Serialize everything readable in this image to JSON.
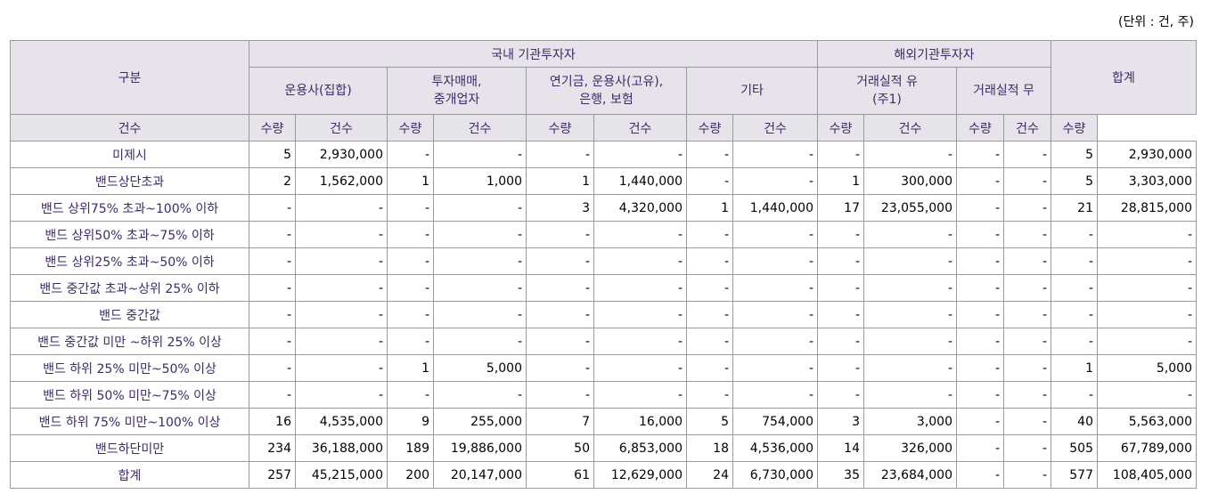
{
  "unit_note": "(단위 : 건, 주)",
  "header": {
    "category": "구분",
    "domestic": "국내 기관투자자",
    "foreign": "해외기관투자자",
    "total": "합계",
    "groups": [
      "운용사(집합)",
      "투자매매,\n중개업자",
      "연기금, 운용사(고유),\n은행, 보험",
      "기타",
      "거래실적 유\n(주1)",
      "거래실적 무"
    ],
    "sub": [
      "건수",
      "수량"
    ]
  },
  "rows": [
    {
      "label": "미제시",
      "cells": [
        "5",
        "2,930,000",
        "-",
        "-",
        "-",
        "-",
        "-",
        "-",
        "-",
        "-",
        "-",
        "-",
        "5",
        "2,930,000"
      ]
    },
    {
      "label": "밴드상단초과",
      "cells": [
        "2",
        "1,562,000",
        "1",
        "1,000",
        "1",
        "1,440,000",
        "-",
        "-",
        "1",
        "300,000",
        "-",
        "-",
        "5",
        "3,303,000"
      ]
    },
    {
      "label": "밴드 상위75% 초과~100% 이하",
      "cells": [
        "-",
        "-",
        "-",
        "-",
        "3",
        "4,320,000",
        "1",
        "1,440,000",
        "17",
        "23,055,000",
        "-",
        "-",
        "21",
        "28,815,000"
      ]
    },
    {
      "label": "밴드 상위50% 초과~75% 이하",
      "cells": [
        "-",
        "-",
        "-",
        "-",
        "-",
        "-",
        "-",
        "-",
        "-",
        "-",
        "-",
        "-",
        "-",
        "-"
      ]
    },
    {
      "label": "밴드 상위25% 초과~50% 이하",
      "cells": [
        "-",
        "-",
        "-",
        "-",
        "-",
        "-",
        "-",
        "-",
        "-",
        "-",
        "-",
        "-",
        "-",
        "-"
      ]
    },
    {
      "label": "밴드 중간값 초과~상위 25% 이하",
      "cells": [
        "-",
        "-",
        "-",
        "-",
        "-",
        "-",
        "-",
        "-",
        "-",
        "-",
        "-",
        "-",
        "-",
        "-"
      ]
    },
    {
      "label": "밴드 중간값",
      "cells": [
        "-",
        "-",
        "-",
        "-",
        "-",
        "-",
        "-",
        "-",
        "-",
        "-",
        "-",
        "-",
        "-",
        "-"
      ]
    },
    {
      "label": "밴드 중간값 미만 ~하위 25% 이상",
      "cells": [
        "-",
        "-",
        "-",
        "-",
        "-",
        "-",
        "-",
        "-",
        "-",
        "-",
        "-",
        "-",
        "-",
        "-"
      ]
    },
    {
      "label": "밴드 하위 25% 미만~50% 이상",
      "cells": [
        "-",
        "-",
        "1",
        "5,000",
        "-",
        "-",
        "-",
        "-",
        "-",
        "-",
        "-",
        "-",
        "1",
        "5,000"
      ]
    },
    {
      "label": "밴드 하위 50% 미만~75% 이상",
      "cells": [
        "-",
        "-",
        "-",
        "-",
        "-",
        "-",
        "-",
        "-",
        "-",
        "-",
        "-",
        "-",
        "-",
        "-"
      ]
    },
    {
      "label": "밴드 하위 75% 미만~100% 이상",
      "cells": [
        "16",
        "4,535,000",
        "9",
        "255,000",
        "7",
        "16,000",
        "5",
        "754,000",
        "3",
        "3,000",
        "-",
        "-",
        "40",
        "5,563,000"
      ]
    },
    {
      "label": "밴드하단미만",
      "cells": [
        "234",
        "36,188,000",
        "189",
        "19,886,000",
        "50",
        "6,853,000",
        "18",
        "4,536,000",
        "14",
        "326,000",
        "-",
        "-",
        "505",
        "67,789,000"
      ]
    },
    {
      "label": "합계",
      "cells": [
        "257",
        "45,215,000",
        "200",
        "20,147,000",
        "61",
        "12,629,000",
        "24",
        "6,730,000",
        "35",
        "23,684,000",
        "-",
        "-",
        "577",
        "108,405,000"
      ]
    }
  ]
}
